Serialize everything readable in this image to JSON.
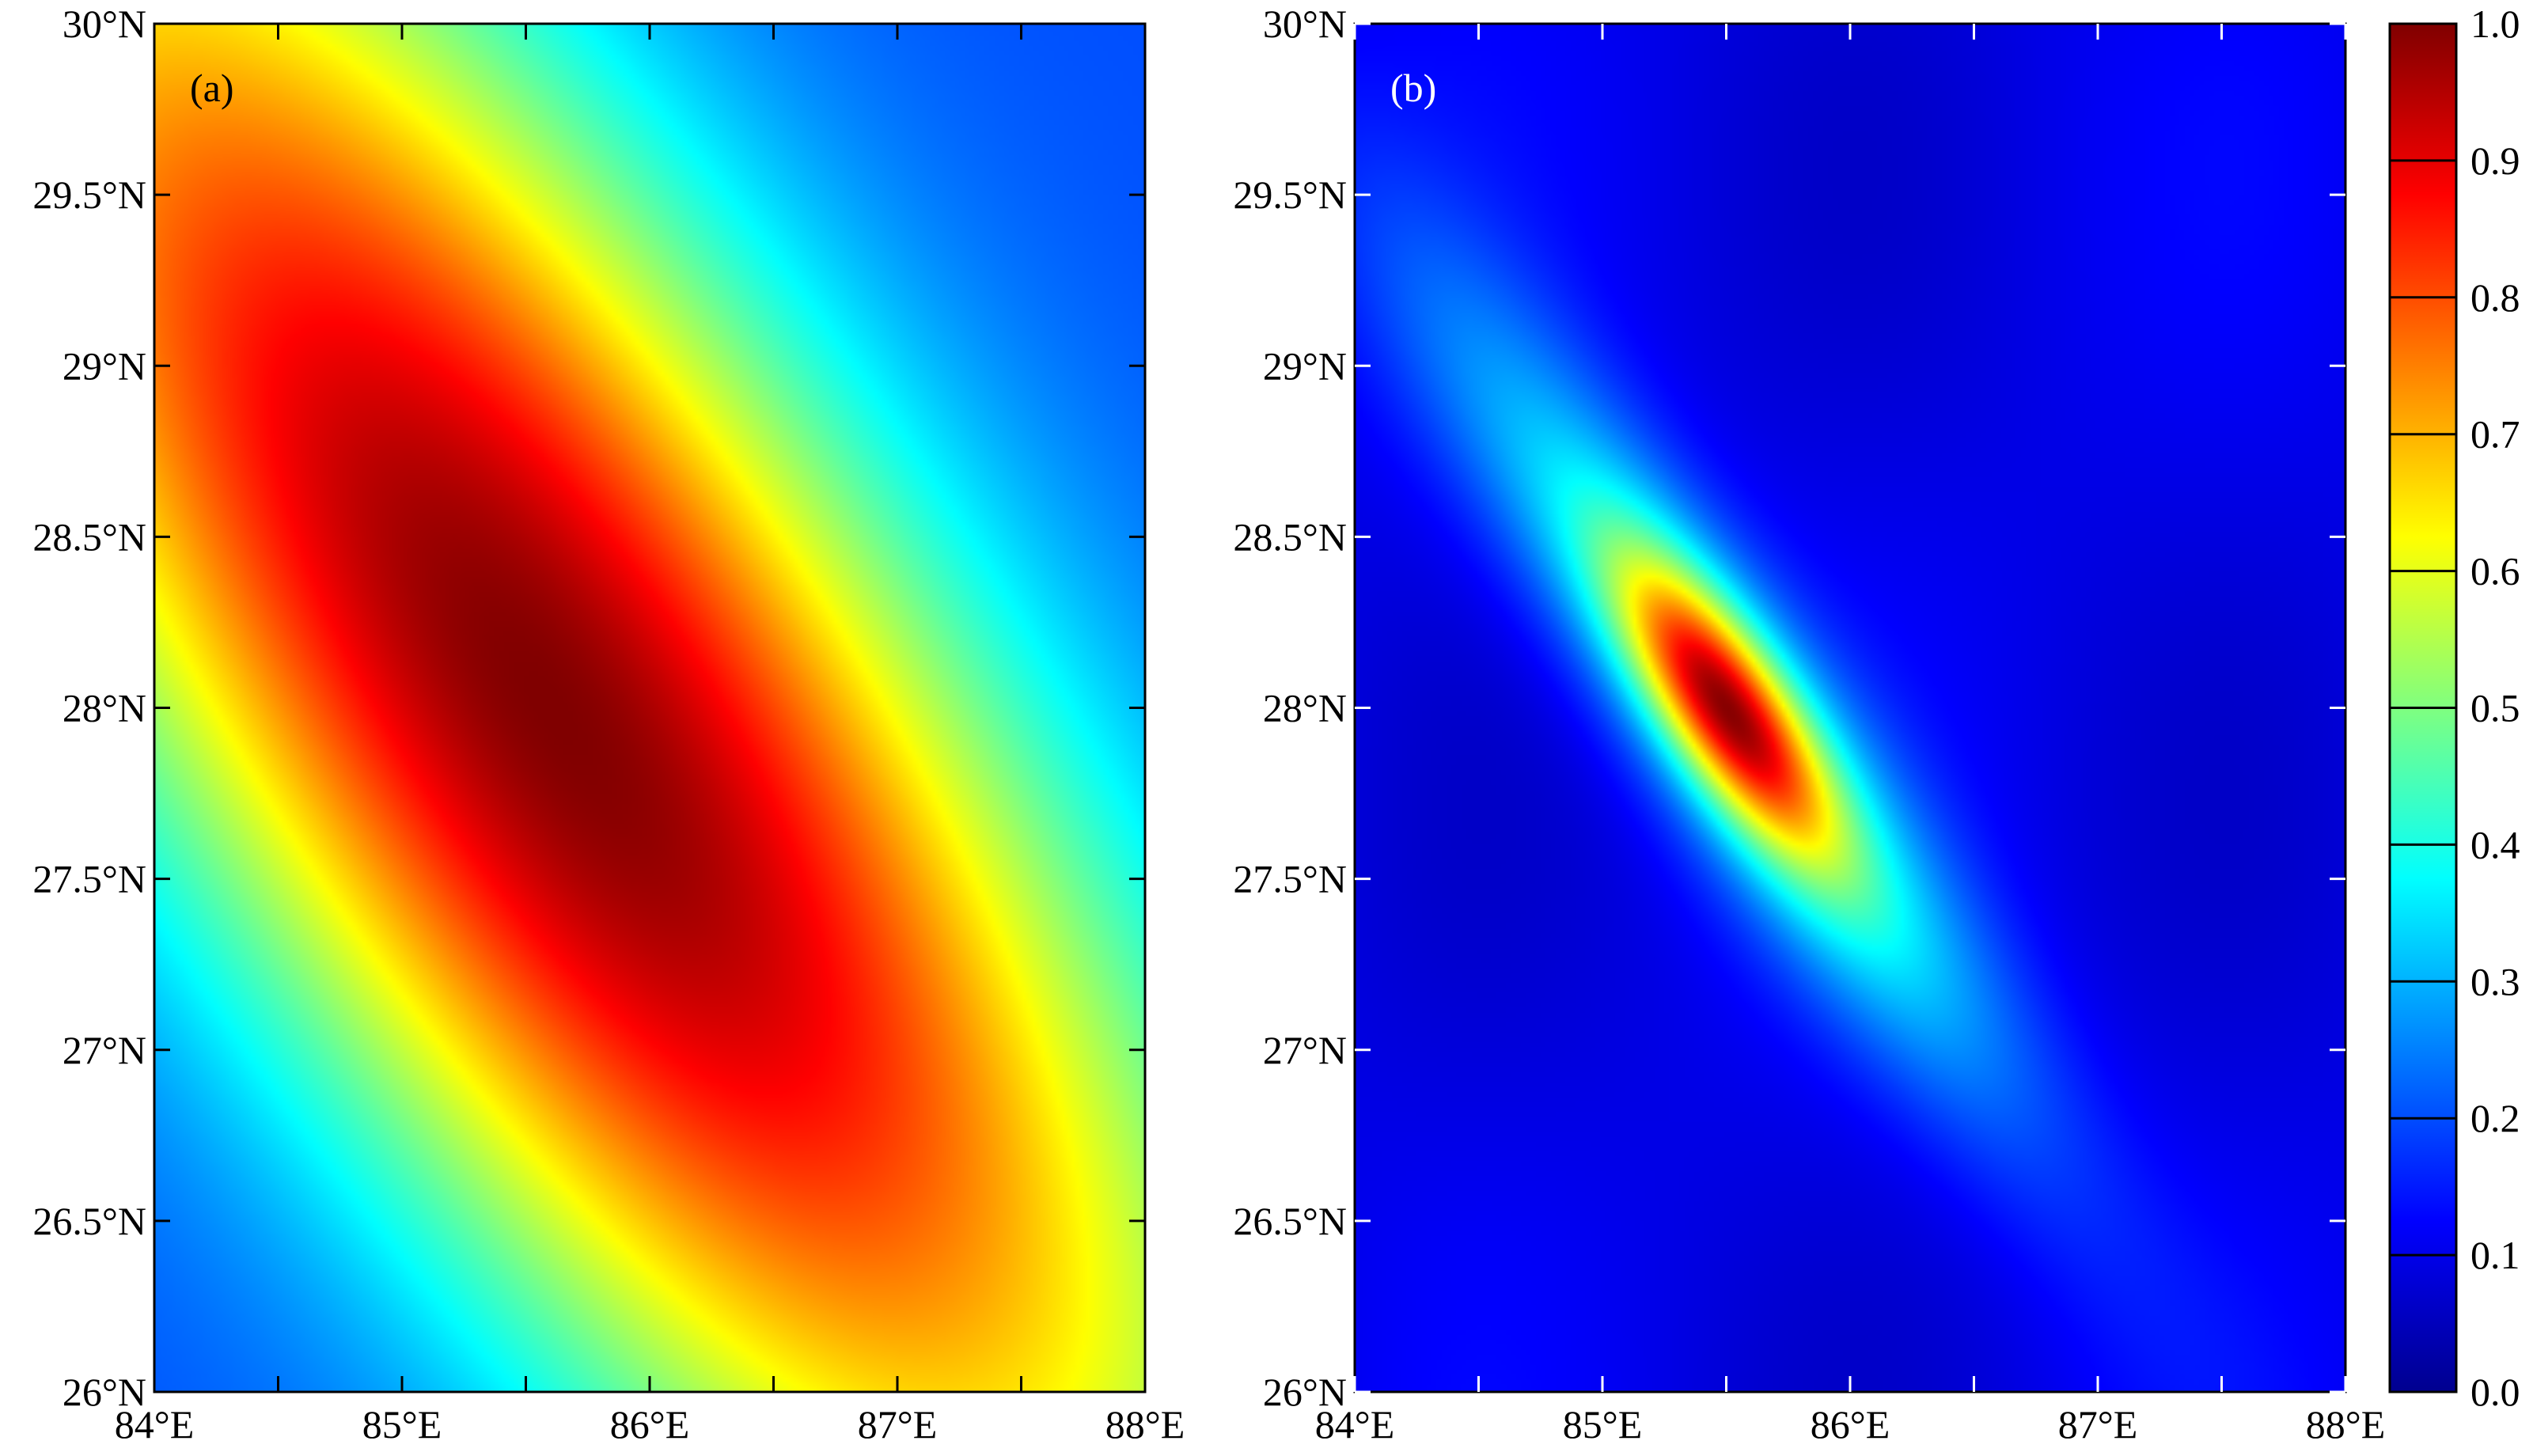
{
  "chart_data": [
    {
      "type": "heatmap",
      "panel_label": "(a)",
      "x_ticks": [
        "84°E",
        "85°E",
        "86°E",
        "87°E",
        "88°E"
      ],
      "x_tick_values": [
        84,
        85,
        86,
        87,
        88
      ],
      "y_ticks": [
        "26°N",
        "26.5°N",
        "27°N",
        "27.5°N",
        "28°N",
        "28.5°N",
        "29°N",
        "29.5°N",
        "30°N"
      ],
      "y_tick_values": [
        26,
        26.5,
        27,
        27.5,
        28,
        28.5,
        29,
        29.5,
        30
      ],
      "xlim": [
        84,
        88
      ],
      "ylim": [
        26,
        30
      ],
      "peak": {
        "lon": 85.6,
        "lat": 28.0,
        "value": 1.0
      },
      "field_value_at_corners": {
        "top-left": 0.68,
        "top-right": 0.22,
        "bottom-left": 0.25,
        "bottom-right": 0.7
      },
      "ellipse_orientation": "northwest-southeast",
      "value_range": [
        0.2,
        1.0
      ],
      "colormap": "jet"
    },
    {
      "type": "heatmap",
      "panel_label": "(b)",
      "x_ticks": [
        "84°E",
        "85°E",
        "86°E",
        "87°E",
        "88°E"
      ],
      "x_tick_values": [
        84,
        85,
        86,
        87,
        88
      ],
      "y_ticks": [
        "26°N",
        "26.5°N",
        "27°N",
        "27.5°N",
        "28°N",
        "28.5°N",
        "29°N",
        "29.5°N",
        "30°N"
      ],
      "y_tick_values": [
        26,
        26.5,
        27,
        27.5,
        28,
        28.5,
        29,
        29.5,
        30
      ],
      "xlim": [
        84,
        88
      ],
      "ylim": [
        26,
        30
      ],
      "peak": {
        "lon": 85.5,
        "lat": 28.0,
        "value": 1.0
      },
      "background_value": 0.1,
      "ellipse_orientation": "northwest-southeast",
      "value_range": [
        0.0,
        1.0
      ],
      "colormap": "jet"
    }
  ],
  "colorbar": {
    "ticks": [
      "0.0",
      "0.1",
      "0.2",
      "0.3",
      "0.4",
      "0.5",
      "0.6",
      "0.7",
      "0.8",
      "0.9",
      "1.0"
    ],
    "tick_values": [
      0.0,
      0.1,
      0.2,
      0.3,
      0.4,
      0.5,
      0.6,
      0.7,
      0.8,
      0.9,
      1.0
    ],
    "range": [
      0.0,
      1.0
    ],
    "colormap": "jet"
  }
}
